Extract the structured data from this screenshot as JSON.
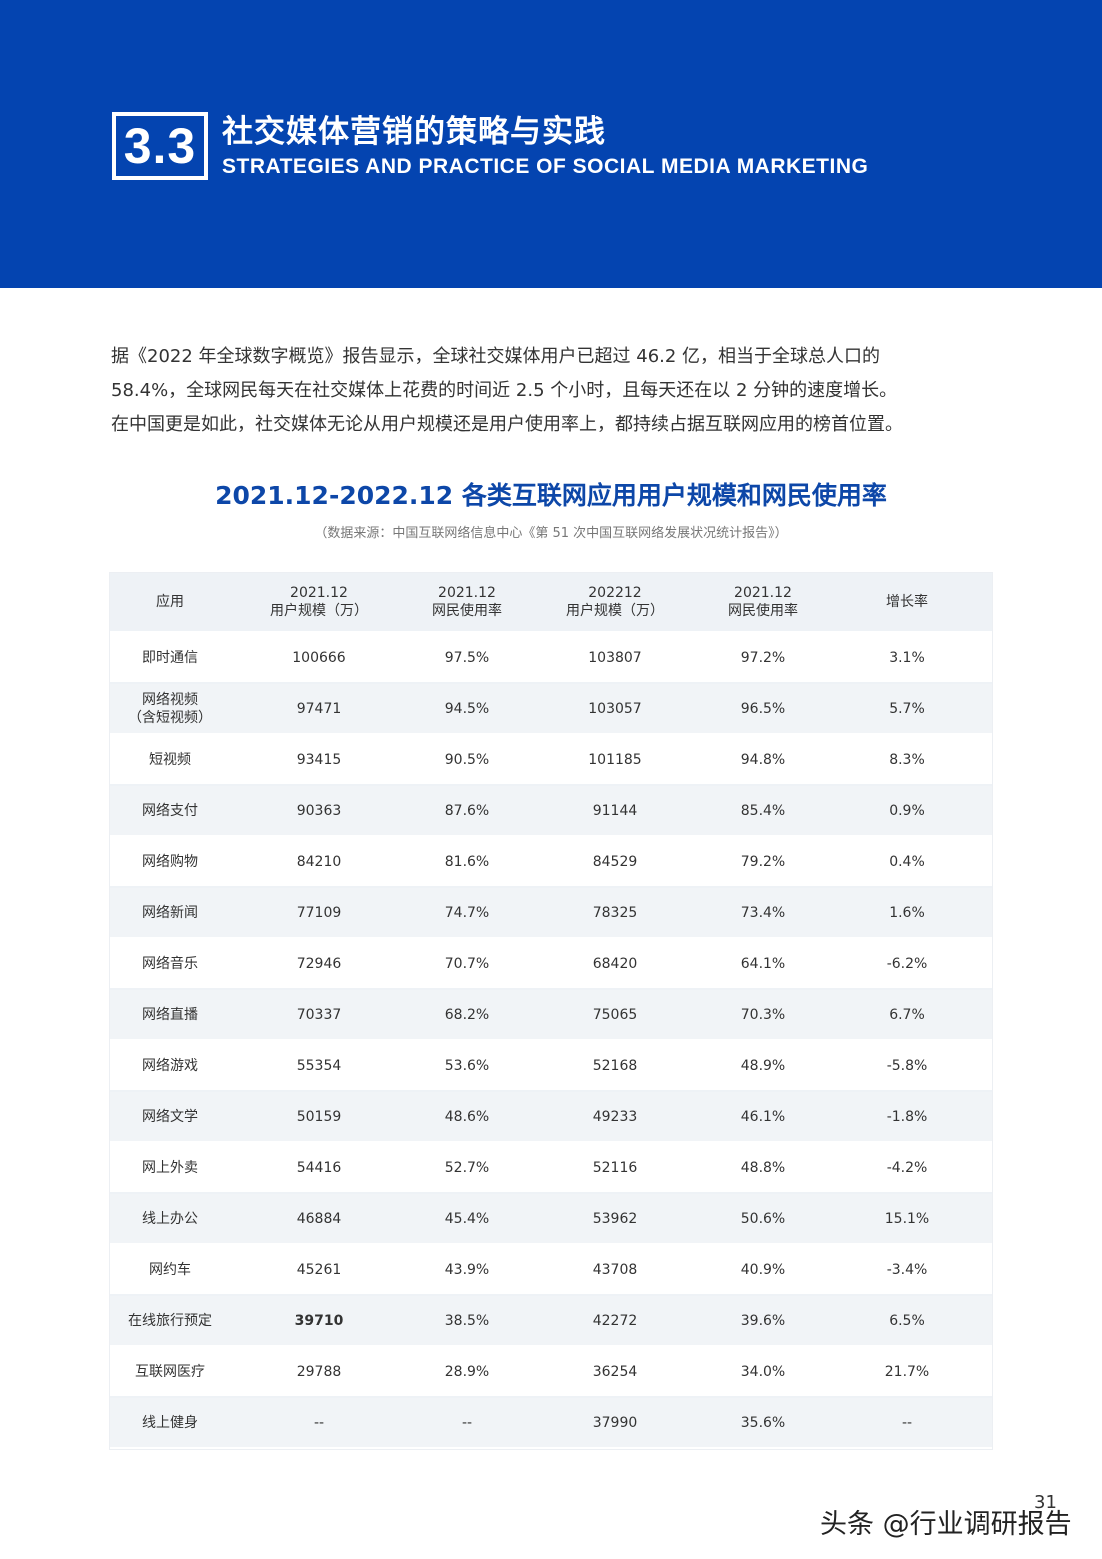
{
  "header": {
    "section_number": "3.3",
    "title_cn": "社交媒体营销的策略与实践",
    "title_en": "STRATEGIES AND PRACTICE OF SOCIAL MEDIA MARKETING",
    "banner_color": "#0444b0"
  },
  "intro": {
    "lines": [
      "据《2022 年全球数字概览》报告显示，全球社交媒体用户已超过 46.2 亿，相当于全球总人口的",
      "58.4%，全球网民每天在社交媒体上花费的时间近 2.5 个小时，且每天还在以 2 分钟的速度增长。",
      "在中国更是如此，社交媒体无论从用户规模还是用户使用率上，都持续占据互联网应用的榜首位置。"
    ]
  },
  "table": {
    "title": "2021.12-2022.12 各类互联网应用用户规模和网民使用率",
    "source": "（数据来源：中国互联网络信息中心《第 51 次中国互联网络发展状况统计报告》）",
    "title_color": "#0d47a8",
    "headers": [
      {
        "line1": "应用",
        "line2": ""
      },
      {
        "line1": "2021.12",
        "line2": "用户规模（万）"
      },
      {
        "line1": "2021.12",
        "line2": "网民使用率"
      },
      {
        "line1": "202212",
        "line2": "用户规模（万）"
      },
      {
        "line1": "2021.12",
        "line2": "网民使用率"
      },
      {
        "line1": "增长率",
        "line2": ""
      }
    ],
    "rows": [
      {
        "app": "即时通信",
        "app2": "",
        "users_2021": "100666",
        "rate_2021": "97.5%",
        "users_2022": "103807",
        "rate_2022": "97.2%",
        "growth": "3.1%"
      },
      {
        "app": "网络视频",
        "app2": "（含短视频）",
        "users_2021": "97471",
        "rate_2021": "94.5%",
        "users_2022": "103057",
        "rate_2022": "96.5%",
        "growth": "5.7%"
      },
      {
        "app": "短视频",
        "app2": "",
        "users_2021": "93415",
        "rate_2021": "90.5%",
        "users_2022": "101185",
        "rate_2022": "94.8%",
        "growth": "8.3%"
      },
      {
        "app": "网络支付",
        "app2": "",
        "users_2021": "90363",
        "rate_2021": "87.6%",
        "users_2022": "91144",
        "rate_2022": "85.4%",
        "growth": "0.9%"
      },
      {
        "app": "网络购物",
        "app2": "",
        "users_2021": "84210",
        "rate_2021": "81.6%",
        "users_2022": "84529",
        "rate_2022": "79.2%",
        "growth": "0.4%"
      },
      {
        "app": "网络新闻",
        "app2": "",
        "users_2021": "77109",
        "rate_2021": "74.7%",
        "users_2022": "78325",
        "rate_2022": "73.4%",
        "growth": "1.6%"
      },
      {
        "app": "网络音乐",
        "app2": "",
        "users_2021": "72946",
        "rate_2021": "70.7%",
        "users_2022": "68420",
        "rate_2022": "64.1%",
        "growth": "-6.2%"
      },
      {
        "app": "网络直播",
        "app2": "",
        "users_2021": "70337",
        "rate_2021": "68.2%",
        "users_2022": "75065",
        "rate_2022": "70.3%",
        "growth": "6.7%"
      },
      {
        "app": "网络游戏",
        "app2": "",
        "users_2021": "55354",
        "rate_2021": "53.6%",
        "users_2022": "52168",
        "rate_2022": "48.9%",
        "growth": "-5.8%"
      },
      {
        "app": "网络文学",
        "app2": "",
        "users_2021": "50159",
        "rate_2021": "48.6%",
        "users_2022": "49233",
        "rate_2022": "46.1%",
        "growth": "-1.8%"
      },
      {
        "app": "网上外卖",
        "app2": "",
        "users_2021": "54416",
        "rate_2021": "52.7%",
        "users_2022": "52116",
        "rate_2022": "48.8%",
        "growth": "-4.2%"
      },
      {
        "app": "线上办公",
        "app2": "",
        "users_2021": "46884",
        "rate_2021": "45.4%",
        "users_2022": "53962",
        "rate_2022": "50.6%",
        "growth": "15.1%"
      },
      {
        "app": "网约车",
        "app2": "",
        "users_2021": "45261",
        "rate_2021": "43.9%",
        "users_2022": "43708",
        "rate_2022": "40.9%",
        "growth": "-3.4%"
      },
      {
        "app": "在线旅行预定",
        "app2": "",
        "users_2021": "39710",
        "rate_2021": "38.5%",
        "users_2022": "42272",
        "rate_2022": "39.6%",
        "growth": "6.5%"
      },
      {
        "app": "互联网医疗",
        "app2": "",
        "users_2021": "29788",
        "rate_2021": "28.9%",
        "users_2022": "36254",
        "rate_2022": "34.0%",
        "growth": "21.7%"
      },
      {
        "app": "线上健身",
        "app2": "",
        "users_2021": "--",
        "rate_2021": "--",
        "users_2022": "37990",
        "rate_2022": "35.6%",
        "growth": "--"
      }
    ]
  },
  "footer": {
    "page_number": "31",
    "watermark": "头条 @行业调研报告"
  }
}
